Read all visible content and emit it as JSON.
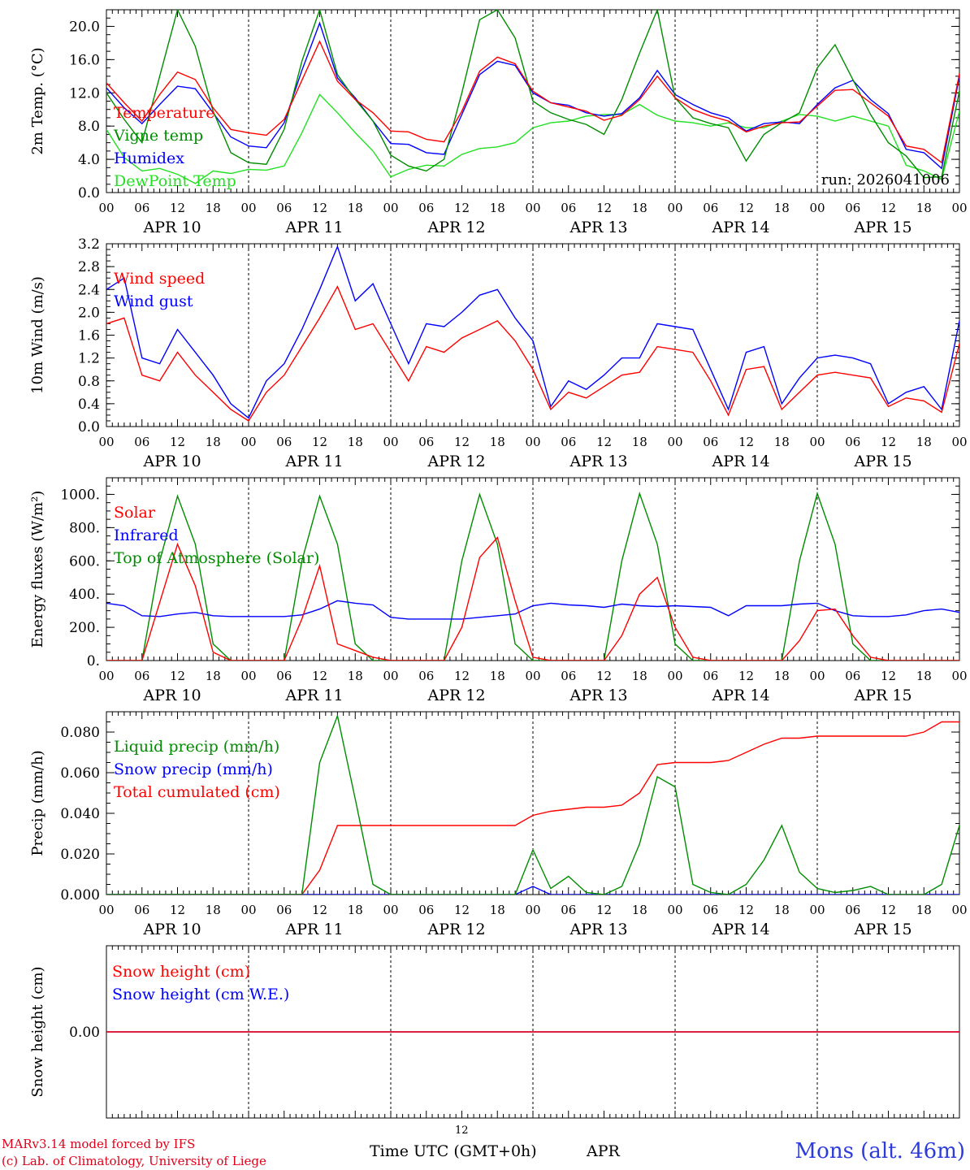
{
  "station": "Mons (alt. 46m)",
  "credits": [
    "MARv3.14 model forced by IFS",
    "(c) Lab. of Climatology, University of Liege"
  ],
  "x_axis": {
    "title": "Time UTC (GMT+0h)",
    "month": "APR",
    "bottom_tick": "12",
    "hour_labels": [
      "00",
      "06",
      "12",
      "18"
    ],
    "day_labels": [
      "APR 10",
      "APR 11",
      "APR 12",
      "APR 13",
      "APR 14",
      "APR 15"
    ]
  },
  "colors": {
    "red": "#ff0000",
    "green": "#008c00",
    "blue": "#0000ff",
    "lightgreen": "#22e022",
    "axis": "#000000"
  },
  "chart_data": [
    {
      "type": "line",
      "title": "2m Temp.",
      "ylabel": "2m Temp. (°C)",
      "ylim": [
        0,
        22
      ],
      "yticks": [
        "0.0",
        "4.0",
        "8.0",
        "12.0",
        "16.0",
        "20.0"
      ],
      "run_label": "run: 2026041006",
      "x_hours": [
        0,
        3,
        6,
        9,
        12,
        15,
        18,
        21,
        24,
        27,
        30,
        33,
        36,
        39,
        42,
        45,
        48,
        51,
        54,
        57,
        60,
        63,
        66,
        69,
        72,
        75,
        78,
        81,
        84,
        87,
        90,
        93,
        96,
        99,
        102,
        105,
        108,
        111,
        114,
        117,
        120,
        123,
        126,
        129,
        132,
        135,
        138,
        141,
        144
      ],
      "series": [
        {
          "name": "Temperature",
          "color": "red",
          "values": [
            13.2,
            10.8,
            8.6,
            11.8,
            14.5,
            13.6,
            10.2,
            7.6,
            7.2,
            6.9,
            8.8,
            13.5,
            18.2,
            13.4,
            11.2,
            9.6,
            7.4,
            7.3,
            6.4,
            6.1,
            9.8,
            14.6,
            16.3,
            15.5,
            12.2,
            10.8,
            10.3,
            9.8,
            8.7,
            9.3,
            11.2,
            14.0,
            11.4,
            10.0,
            9.2,
            8.6,
            7.3,
            8.0,
            8.4,
            8.5,
            10.4,
            12.3,
            12.4,
            10.8,
            9.2,
            5.6,
            5.2,
            3.6,
            14.3
          ]
        },
        {
          "name": "Vigne temp",
          "color": "green",
          "values": [
            12.0,
            8.8,
            6.0,
            14.0,
            22.0,
            17.6,
            9.8,
            4.8,
            3.6,
            3.4,
            7.6,
            15.8,
            22.0,
            14.2,
            11.2,
            8.6,
            4.5,
            3.2,
            2.6,
            4.0,
            12.0,
            20.8,
            22.0,
            18.6,
            11.0,
            9.6,
            8.8,
            8.2,
            7.0,
            11.2,
            16.8,
            22.0,
            11.4,
            9.0,
            8.3,
            7.8,
            3.8,
            7.0,
            8.4,
            9.6,
            15.0,
            17.8,
            13.6,
            9.4,
            6.0,
            4.4,
            1.8,
            1.9,
            12.2
          ]
        },
        {
          "name": "Humidex",
          "color": "blue",
          "values": [
            12.6,
            10.2,
            8.3,
            10.6,
            12.8,
            12.5,
            9.6,
            6.7,
            5.6,
            5.4,
            8.4,
            14.7,
            20.4,
            13.8,
            11.4,
            8.6,
            5.9,
            5.8,
            4.8,
            4.6,
            9.4,
            14.2,
            15.8,
            15.3,
            12.0,
            10.8,
            10.5,
            9.6,
            9.2,
            9.5,
            11.4,
            14.7,
            11.8,
            10.6,
            9.6,
            9.0,
            7.4,
            8.3,
            8.5,
            8.3,
            10.6,
            12.6,
            13.5,
            11.2,
            9.5,
            5.2,
            4.8,
            2.9,
            14.0
          ]
        },
        {
          "name": "DewPoint Temp",
          "color": "lightgreen",
          "values": [
            7.6,
            4.2,
            2.6,
            2.9,
            2.2,
            1.1,
            2.6,
            2.3,
            2.8,
            2.7,
            3.2,
            7.2,
            11.8,
            9.6,
            7.2,
            5.0,
            1.9,
            2.8,
            3.3,
            3.2,
            4.6,
            5.3,
            5.5,
            6.0,
            7.8,
            8.4,
            8.6,
            9.2,
            9.4,
            9.4,
            10.6,
            9.3,
            8.6,
            8.4,
            8.0,
            8.4,
            7.8,
            7.8,
            8.6,
            9.4,
            9.2,
            8.6,
            9.2,
            8.6,
            8.0,
            3.3,
            2.6,
            1.6,
            9.8
          ]
        }
      ]
    },
    {
      "type": "line",
      "title": "10m Wind",
      "ylabel": "10m Wind (m/s)",
      "ylim": [
        0,
        3.2
      ],
      "yticks": [
        "0.0",
        "0.4",
        "0.8",
        "1.2",
        "1.6",
        "2.0",
        "2.4",
        "2.8",
        "3.2"
      ],
      "x_hours": [
        0,
        3,
        6,
        9,
        12,
        15,
        18,
        21,
        24,
        27,
        30,
        33,
        36,
        39,
        42,
        45,
        48,
        51,
        54,
        57,
        60,
        63,
        66,
        69,
        72,
        75,
        78,
        81,
        84,
        87,
        90,
        93,
        96,
        99,
        102,
        105,
        108,
        111,
        114,
        117,
        120,
        123,
        126,
        129,
        132,
        135,
        138,
        141,
        144
      ],
      "series": [
        {
          "name": "Wind speed",
          "color": "red",
          "values": [
            1.8,
            1.9,
            0.9,
            0.8,
            1.3,
            0.9,
            0.6,
            0.3,
            0.1,
            0.6,
            0.9,
            1.4,
            1.9,
            2.45,
            1.7,
            1.8,
            1.3,
            0.8,
            1.4,
            1.3,
            1.55,
            1.7,
            1.85,
            1.5,
            1.0,
            0.3,
            0.6,
            0.5,
            0.7,
            0.9,
            0.95,
            1.4,
            1.35,
            1.3,
            0.8,
            0.2,
            1.0,
            1.05,
            0.3,
            0.6,
            0.9,
            0.95,
            0.9,
            0.85,
            0.35,
            0.5,
            0.45,
            0.25,
            1.45
          ]
        },
        {
          "name": "Wind gust",
          "color": "blue",
          "values": [
            2.4,
            2.6,
            1.2,
            1.1,
            1.7,
            1.3,
            0.9,
            0.4,
            0.15,
            0.8,
            1.1,
            1.7,
            2.4,
            3.15,
            2.2,
            2.5,
            1.8,
            1.1,
            1.8,
            1.75,
            2.0,
            2.3,
            2.4,
            1.9,
            1.5,
            0.35,
            0.8,
            0.65,
            0.9,
            1.2,
            1.2,
            1.8,
            1.75,
            1.7,
            1.0,
            0.3,
            1.3,
            1.4,
            0.4,
            0.85,
            1.2,
            1.25,
            1.2,
            1.1,
            0.4,
            0.6,
            0.7,
            0.3,
            1.85
          ]
        }
      ]
    },
    {
      "type": "line",
      "title": "Energy fluxes",
      "ylabel": "Energy fluxes (W/m²)",
      "ylim": [
        0,
        1100
      ],
      "yticks": [
        "0.",
        "200.",
        "400.",
        "600.",
        "800.",
        "1000."
      ],
      "x_hours": [
        0,
        3,
        6,
        9,
        12,
        15,
        18,
        21,
        24,
        27,
        30,
        33,
        36,
        39,
        42,
        45,
        48,
        51,
        54,
        57,
        60,
        63,
        66,
        69,
        72,
        75,
        78,
        81,
        84,
        87,
        90,
        93,
        96,
        99,
        102,
        105,
        108,
        111,
        114,
        117,
        120,
        123,
        126,
        129,
        132,
        135,
        138,
        141,
        144
      ],
      "series": [
        {
          "name": "Solar",
          "color": "red",
          "values": [
            0,
            0,
            0,
            350,
            700,
            450,
            50,
            0,
            0,
            0,
            0,
            250,
            570,
            100,
            60,
            20,
            0,
            0,
            0,
            0,
            200,
            620,
            740,
            360,
            20,
            0,
            0,
            0,
            0,
            150,
            400,
            500,
            200,
            20,
            0,
            0,
            0,
            0,
            0,
            120,
            300,
            310,
            150,
            20,
            0,
            0,
            0,
            0,
            0
          ]
        },
        {
          "name": "Infrared",
          "color": "blue",
          "values": [
            345,
            330,
            270,
            265,
            280,
            290,
            270,
            265,
            265,
            265,
            265,
            275,
            310,
            360,
            345,
            335,
            260,
            250,
            250,
            250,
            250,
            260,
            270,
            280,
            330,
            345,
            335,
            330,
            320,
            340,
            330,
            325,
            330,
            325,
            320,
            270,
            330,
            330,
            330,
            340,
            345,
            300,
            270,
            265,
            265,
            275,
            300,
            310,
            290
          ]
        },
        {
          "name": "Top of Atmosphere (Solar)",
          "color": "green",
          "values": [
            0,
            0,
            0,
            600,
            990,
            700,
            100,
            0,
            0,
            0,
            0,
            600,
            990,
            700,
            100,
            0,
            0,
            0,
            0,
            0,
            600,
            1000,
            700,
            100,
            0,
            0,
            0,
            0,
            0,
            600,
            1005,
            700,
            100,
            0,
            0,
            0,
            0,
            0,
            0,
            600,
            1005,
            700,
            100,
            0,
            0,
            0,
            0,
            0,
            0
          ]
        }
      ]
    },
    {
      "type": "line",
      "title": "Precip",
      "ylabel": "Precip (mm/h)",
      "ylim": [
        0,
        0.09
      ],
      "yticks": [
        "0.000",
        "0.020",
        "0.040",
        "0.060",
        "0.080"
      ],
      "x_hours": [
        0,
        3,
        6,
        9,
        12,
        15,
        18,
        21,
        24,
        27,
        30,
        33,
        36,
        39,
        42,
        45,
        48,
        51,
        54,
        57,
        60,
        63,
        66,
        69,
        72,
        75,
        78,
        81,
        84,
        87,
        90,
        93,
        96,
        99,
        102,
        105,
        108,
        111,
        114,
        117,
        120,
        123,
        126,
        129,
        132,
        135,
        138,
        141,
        144
      ],
      "series": [
        {
          "name": "Liquid precip (mm/h)",
          "color": "green",
          "values": [
            0,
            0,
            0,
            0,
            0,
            0,
            0,
            0,
            0,
            0,
            0,
            0,
            0.065,
            0.088,
            0.047,
            0.005,
            0,
            0,
            0,
            0,
            0,
            0,
            0,
            0,
            0.022,
            0.003,
            0.009,
            0.001,
            0,
            0.004,
            0.025,
            0.058,
            0.053,
            0.005,
            0.001,
            0,
            0.005,
            0.017,
            0.034,
            0.011,
            0.003,
            0.001,
            0.002,
            0.004,
            0,
            0,
            0,
            0.005,
            0.034
          ]
        },
        {
          "name": "Snow precip (mm/h)",
          "color": "blue",
          "values": [
            0,
            0,
            0,
            0,
            0,
            0,
            0,
            0,
            0,
            0,
            0,
            0,
            0,
            0,
            0,
            0,
            0,
            0,
            0,
            0,
            0,
            0,
            0,
            0,
            0.004,
            0,
            0,
            0,
            0,
            0,
            0,
            0,
            0,
            0,
            0,
            0,
            0,
            0,
            0,
            0,
            0,
            0,
            0,
            0,
            0,
            0,
            0,
            0,
            0
          ]
        },
        {
          "name": "Total cumulated (cm)",
          "color": "red",
          "values": [
            0,
            0,
            0,
            0,
            0,
            0,
            0,
            0,
            0,
            0,
            0,
            0,
            0.012,
            0.034,
            0.034,
            0.034,
            0.034,
            0.034,
            0.034,
            0.034,
            0.034,
            0.034,
            0.034,
            0.034,
            0.039,
            0.041,
            0.042,
            0.043,
            0.043,
            0.044,
            0.05,
            0.064,
            0.065,
            0.065,
            0.065,
            0.066,
            0.07,
            0.074,
            0.077,
            0.077,
            0.078,
            0.078,
            0.078,
            0.078,
            0.078,
            0.078,
            0.08,
            0.085,
            0.085
          ]
        }
      ]
    },
    {
      "type": "line",
      "title": "Snow height",
      "ylabel": "Snow height (cm)",
      "ylim": [
        -1,
        1
      ],
      "yticks": [
        "0.00"
      ],
      "x_hours": [
        0,
        144
      ],
      "series": [
        {
          "name": "Snow height (cm)",
          "color": "red",
          "values": [
            0,
            0
          ]
        },
        {
          "name": "Snow height (cm W.E.)",
          "color": "blue",
          "values": [
            0,
            0
          ]
        }
      ]
    }
  ]
}
